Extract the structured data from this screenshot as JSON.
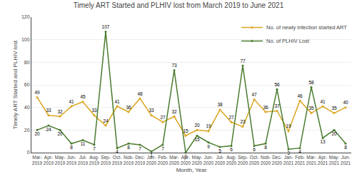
{
  "chart_data": {
    "type": "line",
    "title": "Timely ART Started and PLHIV lost from March 2019 to June 2021",
    "xlabel": "Month, Year",
    "ylabel": "Timely ART Started and PLHIV lost",
    "categories": [
      "Mar-\n2019",
      "Apr-\n2019",
      "May-\n2019",
      "Jun-\n2019",
      "Jul-\n2019",
      "Aug-\n2019",
      "Sep-\n2019",
      "Oct-\n2019",
      "Nob-\n2019",
      "Dec-\n2019",
      "Jan-\n2020",
      "Feb-\n2020",
      "Mar-\n2020",
      "Apr-\n2020",
      "May-\n2020",
      "Jun-\n2020",
      "Jul-\n2020",
      "Aug-\n2020",
      "Sep-\n2020",
      "Oct-\n2020",
      "Nob-\n2020",
      "Dec-\n2020",
      "Jan-\n2021",
      "Feb-\n2021",
      "Mar-\n2021",
      "Apr-\n2021",
      "May-\n2021",
      "Jun-\n2021"
    ],
    "series": [
      {
        "name": "No. of newly infection started ART",
        "color": "#DAA520",
        "values": [
          49,
          33,
          32,
          41,
          45,
          33,
          24,
          41,
          36,
          48,
          33,
          27,
          32,
          15,
          20,
          19,
          38,
          27,
          23,
          47,
          36,
          37,
          19,
          46,
          35,
          41,
          35,
          40
        ]
      },
      {
        "name": "No. of PLHIV Lost",
        "color": "#4a7c2f",
        "values": [
          20,
          24,
          20,
          8,
          11,
          7,
          107,
          4,
          8,
          7,
          1,
          7,
          73,
          0,
          15,
          9,
          5,
          6,
          77,
          6,
          8,
          56,
          3,
          4,
          58,
          13,
          20,
          8
        ]
      }
    ],
    "ylim": [
      0,
      120
    ],
    "yticks": [
      0,
      20,
      40,
      60,
      80,
      100,
      120
    ],
    "grid": true,
    "legend": "upper right",
    "data_labels": true,
    "marker": "circle",
    "line_style": "solid"
  }
}
